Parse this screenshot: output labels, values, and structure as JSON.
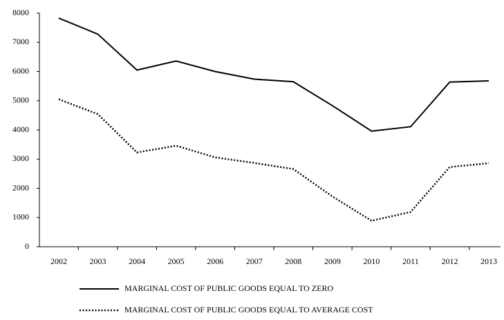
{
  "chart_data": {
    "type": "line",
    "categories": [
      "2002",
      "2003",
      "2004",
      "2005",
      "2006",
      "2007",
      "2008",
      "2009",
      "2010",
      "2011",
      "2012",
      "2013"
    ],
    "series": [
      {
        "name": "MARGINAL COST OF PUBLIC GOODS EQUAL TO ZERO",
        "color": "#000000",
        "dash": "solid",
        "values": [
          7830,
          7280,
          6050,
          6360,
          6000,
          5740,
          5650,
          4830,
          3960,
          4110,
          5640,
          5680
        ]
      },
      {
        "name": "MARGINAL COST OF PUBLIC GOODS EQUAL TO AVERAGE COST",
        "color": "#000000",
        "dash": "dotted",
        "values": [
          5050,
          4540,
          3230,
          3460,
          3060,
          2870,
          2660,
          1720,
          890,
          1190,
          2730,
          2860
        ]
      }
    ],
    "ylim": [
      0,
      8000
    ],
    "yticks": [
      0,
      1000,
      2000,
      3000,
      4000,
      5000,
      6000,
      7000,
      8000
    ],
    "grid": false,
    "legend": "bottom"
  }
}
